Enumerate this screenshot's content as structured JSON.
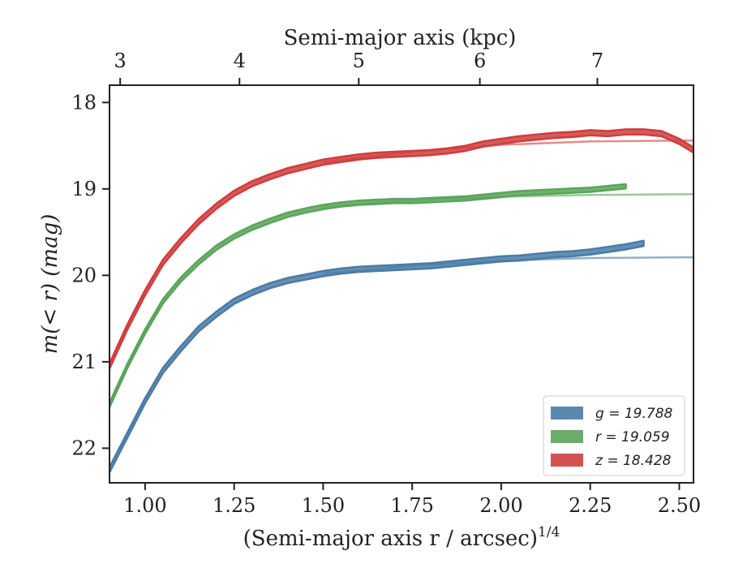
{
  "chart_data": {
    "type": "line",
    "xlabel": "(Semi-major axis r / arcsec)",
    "xlabel_sup": "1/4",
    "ylabel": "m(< r) (mag)",
    "top_xlabel": "Semi-major axis (kpc)",
    "xlim": [
      0.9,
      2.54
    ],
    "ylim": [
      22.4,
      17.8
    ],
    "y_inverted": true,
    "xticks": [
      1.0,
      1.25,
      1.5,
      1.75,
      2.0,
      2.25,
      2.5
    ],
    "xtick_labels": [
      "1.00",
      "1.25",
      "1.50",
      "1.75",
      "2.00",
      "2.25",
      "2.50"
    ],
    "yticks": [
      18,
      19,
      20,
      21,
      22
    ],
    "ytick_labels": [
      "18",
      "19",
      "20",
      "21",
      "22"
    ],
    "top_xticks_kpc": [
      3,
      4,
      5,
      6,
      7
    ],
    "top_xtick_labels": [
      "3",
      "4",
      "5",
      "6",
      "7"
    ],
    "top_xtick_positions": [
      0.93,
      1.265,
      1.6,
      1.94,
      2.27
    ],
    "legend_position": "lower-right",
    "series": [
      {
        "name": "g = 19.788",
        "legend_prefix": "g",
        "legend_value": "= 19.788",
        "color": "#4a7ba6",
        "asymptote": 19.788,
        "band_width": 0.06,
        "x": [
          0.9,
          0.95,
          1.0,
          1.05,
          1.1,
          1.15,
          1.2,
          1.25,
          1.3,
          1.35,
          1.4,
          1.45,
          1.5,
          1.55,
          1.6,
          1.65,
          1.7,
          1.75,
          1.8,
          1.85,
          1.9,
          1.95,
          2.0,
          2.05,
          2.1,
          2.15,
          2.2,
          2.25,
          2.3,
          2.35,
          2.4
        ],
        "values": [
          22.25,
          21.85,
          21.45,
          21.1,
          20.85,
          20.62,
          20.45,
          20.3,
          20.2,
          20.12,
          20.06,
          20.02,
          19.98,
          19.95,
          19.93,
          19.92,
          19.91,
          19.9,
          19.89,
          19.87,
          19.85,
          19.83,
          19.81,
          19.8,
          19.78,
          19.76,
          19.75,
          19.73,
          19.7,
          19.67,
          19.63
        ],
        "model_x": [
          1.5,
          1.75,
          2.0,
          2.25,
          2.54
        ],
        "model_values": [
          19.98,
          19.89,
          19.83,
          19.8,
          19.79
        ]
      },
      {
        "name": "r = 19.059",
        "legend_prefix": "r",
        "legend_value": "= 19.059",
        "color": "#5aa55a",
        "asymptote": 19.059,
        "band_width": 0.05,
        "x": [
          0.9,
          0.95,
          1.0,
          1.05,
          1.1,
          1.15,
          1.2,
          1.25,
          1.3,
          1.35,
          1.4,
          1.45,
          1.5,
          1.55,
          1.6,
          1.65,
          1.7,
          1.75,
          1.8,
          1.85,
          1.9,
          1.95,
          2.0,
          2.05,
          2.1,
          2.15,
          2.2,
          2.25,
          2.3,
          2.35
        ],
        "values": [
          21.5,
          21.05,
          20.65,
          20.3,
          20.05,
          19.85,
          19.68,
          19.55,
          19.45,
          19.37,
          19.3,
          19.25,
          19.21,
          19.18,
          19.16,
          19.15,
          19.14,
          19.14,
          19.13,
          19.12,
          19.11,
          19.09,
          19.07,
          19.05,
          19.04,
          19.03,
          19.02,
          19.01,
          18.99,
          18.97
        ],
        "model_x": [
          1.5,
          1.75,
          2.0,
          2.25,
          2.54
        ],
        "model_values": [
          19.21,
          19.13,
          19.09,
          19.07,
          19.06
        ]
      },
      {
        "name": "z = 18.428",
        "legend_prefix": "z",
        "legend_value": "= 18.428",
        "color": "#d03d3d",
        "asymptote": 18.428,
        "band_width": 0.06,
        "x": [
          0.9,
          0.95,
          1.0,
          1.05,
          1.1,
          1.15,
          1.2,
          1.25,
          1.3,
          1.35,
          1.4,
          1.45,
          1.5,
          1.55,
          1.6,
          1.65,
          1.7,
          1.75,
          1.8,
          1.85,
          1.9,
          1.95,
          2.0,
          2.05,
          2.1,
          2.15,
          2.2,
          2.25,
          2.3,
          2.35,
          2.4,
          2.45,
          2.5,
          2.54
        ],
        "values": [
          21.05,
          20.6,
          20.2,
          19.85,
          19.6,
          19.38,
          19.2,
          19.05,
          18.94,
          18.86,
          18.79,
          18.74,
          18.69,
          18.66,
          18.63,
          18.61,
          18.6,
          18.59,
          18.58,
          18.56,
          18.53,
          18.48,
          18.45,
          18.42,
          18.4,
          18.38,
          18.37,
          18.35,
          18.36,
          18.34,
          18.34,
          18.36,
          18.45,
          18.55
        ],
        "model_x": [
          1.5,
          1.75,
          2.0,
          2.25,
          2.54
        ],
        "model_values": [
          18.69,
          18.57,
          18.49,
          18.45,
          18.44
        ]
      }
    ]
  }
}
